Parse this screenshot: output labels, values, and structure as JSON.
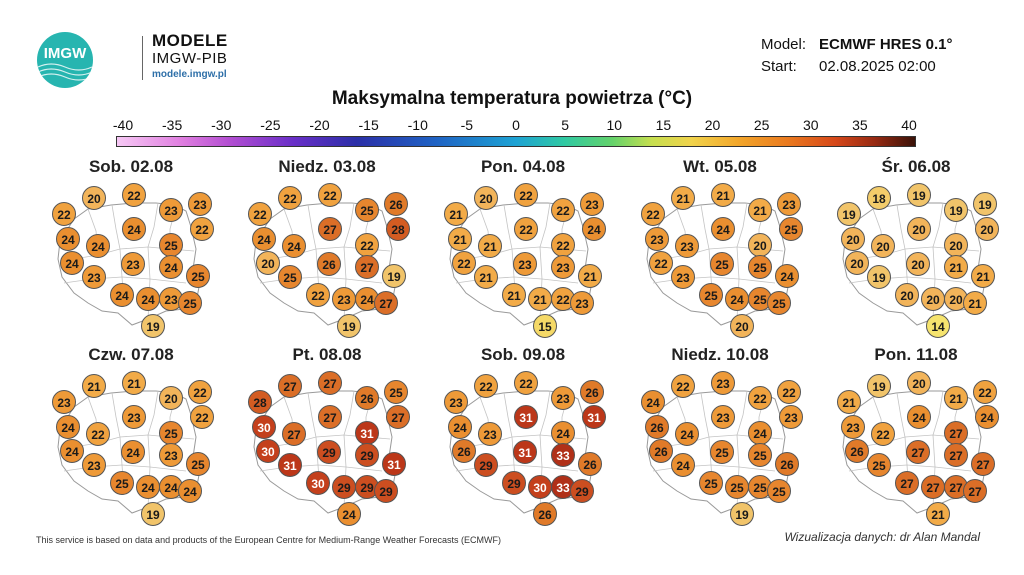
{
  "logo": {
    "mark": "IMGW",
    "title": "MODELE",
    "subtitle": "IMGW-PIB",
    "url": "modele.imgw.pl"
  },
  "model": {
    "model_label": "Model:",
    "model_value": "ECMWF HRES 0.1°",
    "start_label": "Start:",
    "start_value": "02.08.2025 02:00"
  },
  "title": "Maksymalna temperatura powietrza (°C)",
  "scale": [
    "-40",
    "-35",
    "-30",
    "-25",
    "-20",
    "-15",
    "-10",
    "-5",
    "0",
    "5",
    "10",
    "15",
    "20",
    "25",
    "30",
    "35",
    "40"
  ],
  "colors": {
    "t14": "#f6e46e",
    "t15": "#f5d967",
    "t18": "#f3cc6a",
    "t19": "#f1c46a",
    "t20": "#f2b45a",
    "t21": "#f2ab48",
    "t22": "#f0a23f",
    "t23": "#ee9a38",
    "t24": "#ea8f30",
    "t25": "#e7862e",
    "t26": "#e07a29",
    "t27": "#db6e27",
    "t28": "#d35c22",
    "t29": "#cc4e20",
    "t30": "#c4401c",
    "t31": "#bc3719",
    "t33": "#b03018"
  },
  "days": [
    {
      "label": "Sob. 02.08",
      "temps": [
        "20",
        "22",
        "23",
        "23",
        "22",
        "22",
        "24",
        "24",
        "24",
        "25",
        "24",
        "23",
        "23",
        "24",
        "25",
        "24",
        "24",
        "23",
        "25",
        "19"
      ]
    },
    {
      "label": "Niedz. 03.08",
      "temps": [
        "22",
        "22",
        "25",
        "26",
        "22",
        "28",
        "24",
        "24",
        "27",
        "22",
        "20",
        "25",
        "26",
        "27",
        "19",
        "22",
        "23",
        "24",
        "27",
        "19"
      ]
    },
    {
      "label": "Pon. 04.08",
      "temps": [
        "20",
        "22",
        "22",
        "23",
        "21",
        "24",
        "21",
        "21",
        "22",
        "22",
        "22",
        "21",
        "23",
        "23",
        "21",
        "21",
        "21",
        "22",
        "23",
        "15"
      ]
    },
    {
      "label": "Wt. 05.08",
      "temps": [
        "21",
        "21",
        "21",
        "23",
        "22",
        "25",
        "23",
        "23",
        "24",
        "20",
        "22",
        "23",
        "25",
        "25",
        "24",
        "25",
        "24",
        "25",
        "25",
        "20"
      ]
    },
    {
      "label": "Śr. 06.08",
      "temps": [
        "18",
        "19",
        "19",
        "19",
        "19",
        "20",
        "20",
        "20",
        "20",
        "20",
        "20",
        "19",
        "20",
        "21",
        "21",
        "20",
        "20",
        "20",
        "21",
        "14"
      ]
    },
    {
      "label": "Czw. 07.08",
      "temps": [
        "21",
        "21",
        "20",
        "22",
        "23",
        "22",
        "24",
        "22",
        "23",
        "25",
        "24",
        "23",
        "24",
        "23",
        "25",
        "25",
        "24",
        "24",
        "24",
        "19"
      ]
    },
    {
      "label": "Pt. 08.08",
      "temps": [
        "27",
        "27",
        "26",
        "25",
        "28",
        "27",
        "30",
        "27",
        "27",
        "31",
        "30",
        "31",
        "29",
        "29",
        "31",
        "30",
        "29",
        "29",
        "29",
        "24"
      ]
    },
    {
      "label": "Sob. 09.08",
      "temps": [
        "22",
        "22",
        "23",
        "26",
        "23",
        "31",
        "24",
        "23",
        "31",
        "24",
        "26",
        "29",
        "31",
        "33",
        "26",
        "29",
        "30",
        "33",
        "29",
        "26"
      ]
    },
    {
      "label": "Niedz. 10.08",
      "temps": [
        "22",
        "23",
        "22",
        "22",
        "24",
        "23",
        "26",
        "24",
        "23",
        "24",
        "26",
        "24",
        "25",
        "25",
        "26",
        "25",
        "25",
        "25",
        "25",
        "19"
      ]
    },
    {
      "label": "Pon. 11.08",
      "temps": [
        "19",
        "20",
        "21",
        "22",
        "21",
        "24",
        "23",
        "22",
        "24",
        "27",
        "26",
        "25",
        "27",
        "27",
        "27",
        "27",
        "27",
        "27",
        "27",
        "21"
      ]
    }
  ],
  "footer": {
    "left": "This service is based on data and products of the European Centre for Medium-Range Weather Forecasts (ECMWF)",
    "right": "Wizualizacja danych: dr Alan Mandal"
  }
}
